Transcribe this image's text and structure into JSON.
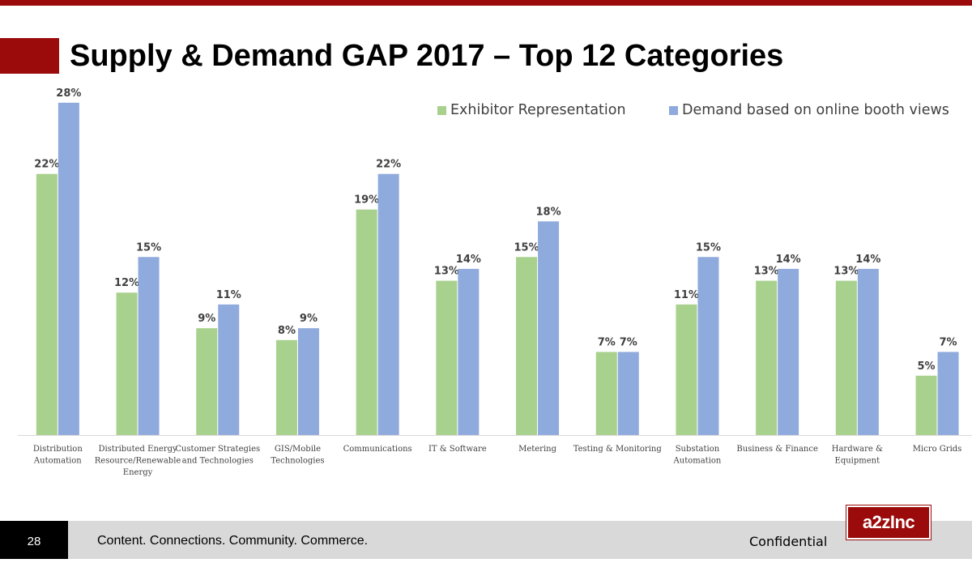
{
  "slide": {
    "title": "Supply & Demand GAP 2017 – Top 12 Categories",
    "page_number": "28",
    "tagline": "Content. Connections. Community. Commerce.",
    "confidential": "Confidential",
    "logo_text": "a2zInc"
  },
  "colors": {
    "accent": "#9b0b0b",
    "exhibitor": "#a9d18e",
    "demand": "#8faadc"
  },
  "chart_data": {
    "type": "bar",
    "legend_position": "top-right",
    "grid": false,
    "ylim": [
      0,
      30
    ],
    "categories": [
      [
        "Distribution",
        "Automation"
      ],
      [
        "Distributed Energy",
        "Resource/Renewable",
        "Energy"
      ],
      [
        "Customer Strategies",
        "and Technologies"
      ],
      [
        "GIS/Mobile",
        "Technologies"
      ],
      [
        "Communications"
      ],
      [
        "IT & Software"
      ],
      [
        "Metering"
      ],
      [
        "Testing & Monitoring"
      ],
      [
        "Substation",
        "Automation"
      ],
      [
        "Business & Finance"
      ],
      [
        "Hardware &",
        "Equipment"
      ],
      [
        "Micro Grids"
      ]
    ],
    "series": [
      {
        "name": "Exhibitor Representation",
        "values": [
          22,
          12,
          9,
          8,
          19,
          13,
          15,
          7,
          11,
          13,
          13,
          5
        ],
        "labels": [
          "22%",
          "12%",
          "9%",
          "8%",
          "19%",
          "13%",
          "15%",
          "7%",
          "11%",
          "13%",
          "13%",
          "5%"
        ]
      },
      {
        "name": "Demand based on online booth views",
        "values": [
          28,
          15,
          11,
          9,
          22,
          14,
          18,
          7,
          15,
          14,
          14,
          7
        ],
        "labels": [
          "28%",
          "15%",
          "11%",
          "9%",
          "22%",
          "14%",
          "18%",
          "7%",
          "15%",
          "14%",
          "14%",
          "7%"
        ]
      }
    ]
  }
}
